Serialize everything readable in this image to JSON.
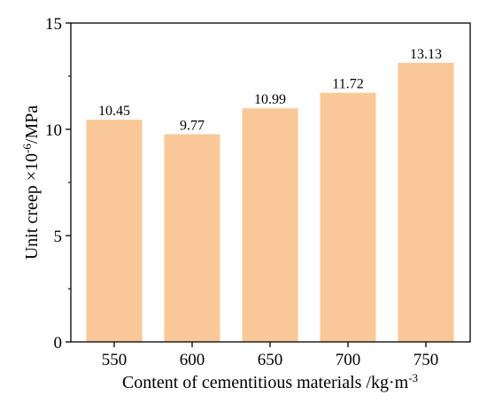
{
  "chart_data": {
    "type": "bar",
    "categories": [
      "550",
      "600",
      "650",
      "700",
      "750"
    ],
    "values": [
      10.45,
      9.77,
      10.99,
      11.72,
      13.13
    ],
    "data_labels": [
      "10.45",
      "9.77",
      "10.99",
      "11.72",
      "13.13"
    ],
    "xlabel_parts": [
      "Content of cementitious materials /kg·m",
      "-3"
    ],
    "ylabel_parts": [
      "Unit creep ×10",
      "-6",
      "/MPa"
    ],
    "ylim": [
      0,
      15
    ],
    "yticks": [
      0,
      5,
      10,
      15
    ],
    "ytick_labels": [
      "0",
      "5",
      "10",
      "15"
    ],
    "grid": false,
    "bar_color": "#FAC898"
  }
}
